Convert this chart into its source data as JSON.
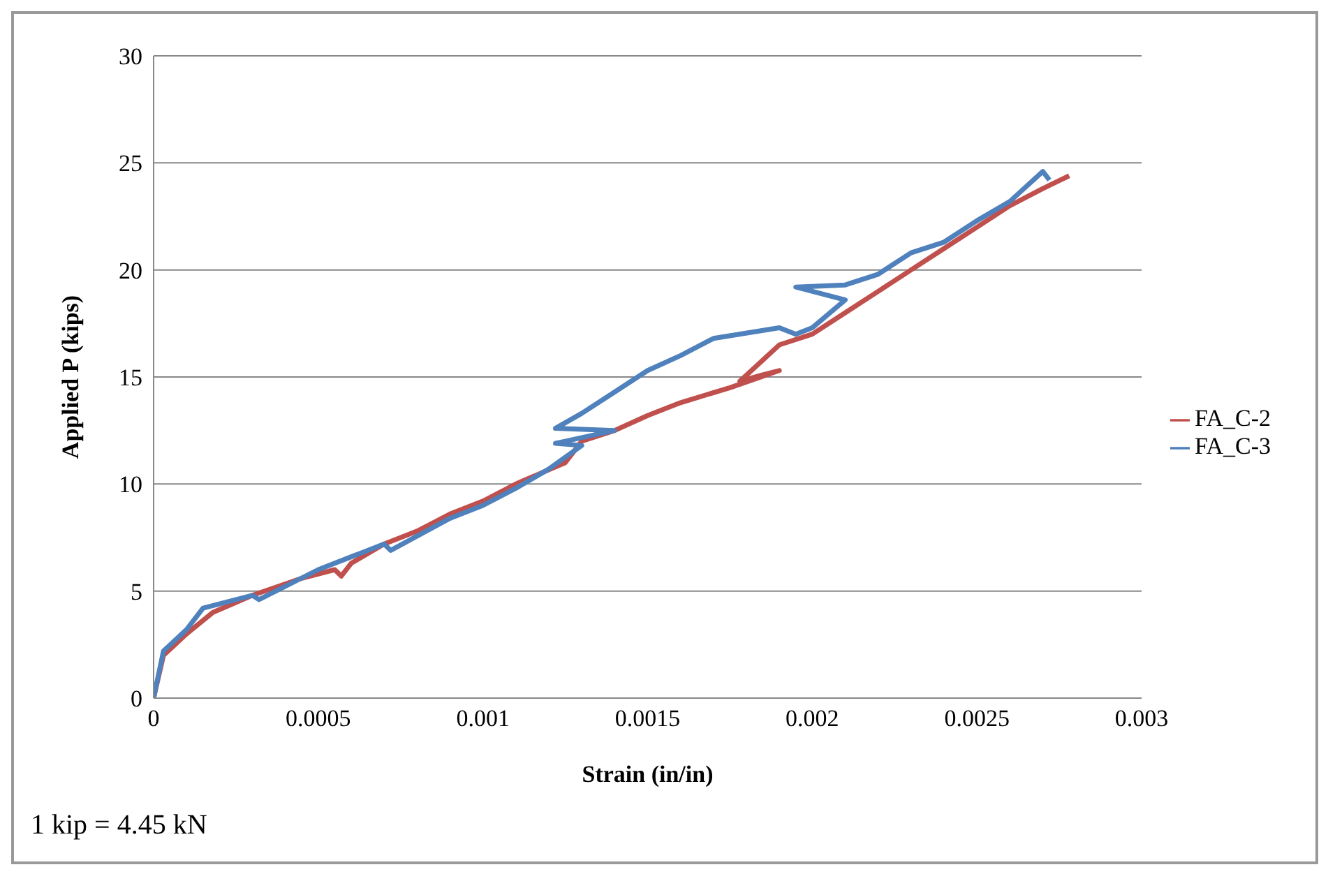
{
  "chart_data": {
    "type": "line",
    "xlabel": "Strain (in/in)",
    "ylabel": "Applied P (kips)",
    "xlim": [
      0,
      0.003
    ],
    "xticks": [
      0,
      0.0005,
      0.001,
      0.0015,
      0.002,
      0.0025,
      0.003
    ],
    "ylim": [
      0,
      30
    ],
    "yticks": [
      0,
      5,
      10,
      15,
      20,
      25,
      30
    ],
    "grid": "y",
    "legend": "right",
    "marker": "none",
    "line_style": "solid",
    "annotations": [
      "1 kip = 4.45 kN"
    ],
    "series": [
      {
        "name": "FA_C-2",
        "color": "#c0504d",
        "x": [
          0,
          3e-05,
          0.0001,
          0.00018,
          0.0003,
          0.00045,
          0.00055,
          0.00057,
          0.0006,
          0.0007,
          0.0008,
          0.0009,
          0.001,
          0.0011,
          0.00125,
          0.0013,
          0.0014,
          0.0015,
          0.0016,
          0.00175,
          0.0019,
          0.00185,
          0.00178,
          0.0019,
          0.002,
          0.0021,
          0.0022,
          0.0023,
          0.0024,
          0.0025,
          0.0026,
          0.0027,
          0.00278
        ],
        "values": [
          0,
          2,
          3,
          4,
          4.8,
          5.6,
          6,
          5.7,
          6.3,
          7.2,
          7.8,
          8.6,
          9.2,
          10,
          11,
          12,
          12.5,
          13.2,
          13.8,
          14.5,
          15.3,
          15.1,
          14.8,
          16.5,
          17,
          18,
          19,
          20,
          21,
          22,
          23,
          23.8,
          24.4
        ]
      },
      {
        "name": "FA_C-3",
        "color": "#4f81bd",
        "x": [
          0,
          3e-05,
          0.0001,
          0.00015,
          0.0003,
          0.00032,
          0.0005,
          0.0007,
          0.00072,
          0.0009,
          0.001,
          0.0011,
          0.0012,
          0.0013,
          0.00122,
          0.0014,
          0.00122,
          0.0013,
          0.0014,
          0.0015,
          0.0016,
          0.0017,
          0.0019,
          0.00195,
          0.002,
          0.0021,
          0.00195,
          0.0021,
          0.0022,
          0.0023,
          0.0024,
          0.0025,
          0.0026,
          0.0027,
          0.00272
        ],
        "values": [
          0,
          2.2,
          3.2,
          4.2,
          4.8,
          4.6,
          6,
          7.2,
          6.9,
          8.4,
          9,
          9.8,
          10.7,
          11.8,
          11.9,
          12.5,
          12.6,
          13.3,
          14.3,
          15.3,
          16,
          16.8,
          17.3,
          17,
          17.3,
          18.6,
          19.2,
          19.3,
          19.8,
          20.8,
          21.3,
          22.3,
          23.2,
          24.6,
          24.2
        ]
      }
    ]
  }
}
